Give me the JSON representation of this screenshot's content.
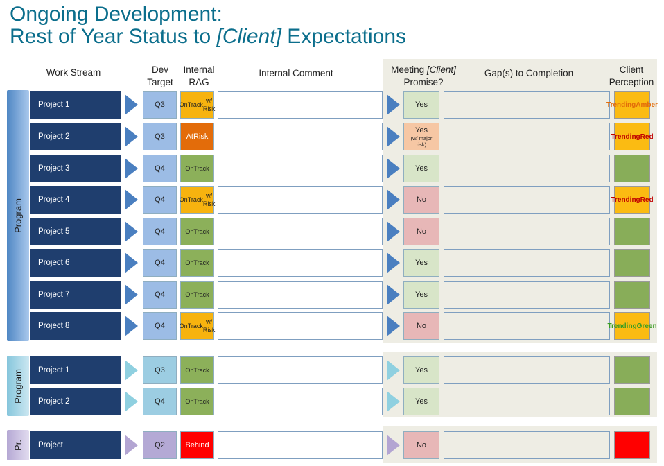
{
  "title": {
    "line1": "Ongoing Development:",
    "line2_pre": "Rest of Year Status to ",
    "line2_client": "[Client]",
    "line2_post": " Expectations"
  },
  "headers": {
    "work_stream": "Work Stream",
    "dev_target_1": "Dev",
    "dev_target_2": "Target",
    "internal_rag_1": "Internal",
    "internal_rag_2": "RAG",
    "internal_comment": "Internal Comment",
    "meeting_pre": "Meeting ",
    "meeting_client": "[Client]",
    "meeting_2": "Promise?",
    "gaps": "Gap(s) to Completion",
    "client_perc_1": "Client",
    "client_perc_2": "Perception"
  },
  "groups": [
    {
      "label": "Program"
    },
    {
      "label": "Program"
    },
    {
      "label": "Pr."
    }
  ],
  "rows": [
    {
      "project": "Project 1",
      "dev_target": "Q3",
      "rag": [
        "On",
        "Track",
        "w/ Risk"
      ],
      "promise": [
        "Yes"
      ],
      "perception": [
        "Trending",
        "Amber"
      ]
    },
    {
      "project": "Project 2",
      "dev_target": "Q3",
      "rag": [
        "At",
        "Risk"
      ],
      "promise": [
        "Yes",
        "(w/ major",
        "risk)"
      ],
      "perception": [
        "Trending",
        "Red"
      ]
    },
    {
      "project": "Project 3",
      "dev_target": "Q4",
      "rag": [
        "On",
        "Track"
      ],
      "promise": [
        "Yes"
      ],
      "perception": []
    },
    {
      "project": "Project 4",
      "dev_target": "Q4",
      "rag": [
        "On",
        "Track",
        "w/ Risk"
      ],
      "promise": [
        "No"
      ],
      "perception": [
        "Trending",
        "Red"
      ]
    },
    {
      "project": "Project 5",
      "dev_target": "Q4",
      "rag": [
        "On",
        "Track"
      ],
      "promise": [
        "No"
      ],
      "perception": []
    },
    {
      "project": "Project 6",
      "dev_target": "Q4",
      "rag": [
        "On",
        "Track"
      ],
      "promise": [
        "Yes"
      ],
      "perception": []
    },
    {
      "project": "Project 7",
      "dev_target": "Q4",
      "rag": [
        "On",
        "Track"
      ],
      "promise": [
        "Yes"
      ],
      "perception": []
    },
    {
      "project": "Project 8",
      "dev_target": "Q4",
      "rag": [
        "On",
        "Track",
        "w/ Risk"
      ],
      "promise": [
        "No"
      ],
      "perception": [
        "Trending",
        "Green"
      ]
    },
    {
      "project": "Project 1",
      "dev_target": "Q3",
      "rag": [
        "On",
        "Track"
      ],
      "promise": [
        "Yes"
      ],
      "perception": []
    },
    {
      "project": "Project 2",
      "dev_target": "Q4",
      "rag": [
        "On",
        "Track"
      ],
      "promise": [
        "Yes"
      ],
      "perception": []
    },
    {
      "project": "Project",
      "dev_target": "Q2",
      "rag": [
        "Behind"
      ],
      "promise": [
        "No"
      ],
      "perception": []
    }
  ],
  "colors": {
    "title": "#0b6e8c",
    "work_stream_bg": "#1f3e6e",
    "rag_on_track": "#8cb05a",
    "rag_on_track_risk": "#f7b30f",
    "rag_at_risk": "#e36c0a",
    "rag_behind": "#ff0000",
    "promise_yes": "#d8e5c8",
    "promise_no": "#e7b7b7",
    "promise_yes_risk": "#f6c7a4",
    "perception_green": "#88ad59",
    "perception_amber": "#fbbb12",
    "perception_red": "#ff0000",
    "trending_amber_text": "#e36c0a",
    "trending_red_text": "#c00000",
    "trending_green_text": "#3a9d23"
  }
}
